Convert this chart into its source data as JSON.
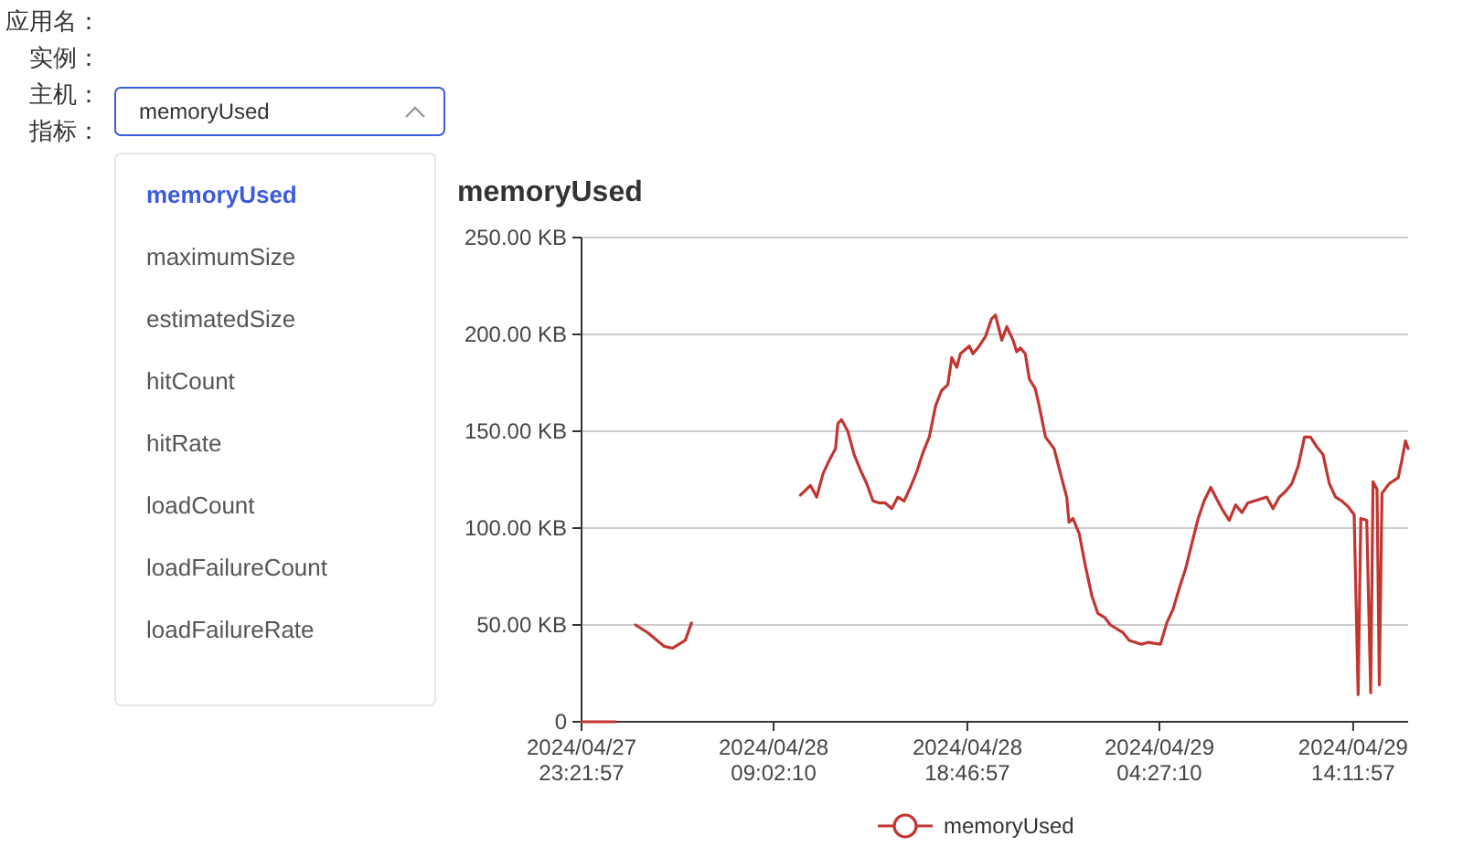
{
  "chart_data": {
    "type": "line",
    "title": "memoryUsed",
    "x": [
      "2024-04-27T23:22",
      "2024-04-28T01:04",
      "2024-04-28T01:52",
      "2024-04-28T02:05",
      "2024-04-28T02:42",
      "2024-04-28T03:31",
      "2024-04-28T03:57",
      "2024-04-28T04:35",
      "2024-04-28T04:54",
      "2024-04-28T05:52",
      "2024-04-28T10:23",
      "2024-04-28T10:53",
      "2024-04-28T11:12",
      "2024-04-28T11:31",
      "2024-04-28T11:50",
      "2024-04-28T12:09",
      "2024-04-28T12:16",
      "2024-04-28T12:27",
      "2024-04-28T12:46",
      "2024-04-28T13:05",
      "2024-04-28T13:24",
      "2024-04-28T13:43",
      "2024-04-28T14:02",
      "2024-04-28T14:21",
      "2024-04-28T14:39",
      "2024-04-28T14:59",
      "2024-04-28T15:17",
      "2024-04-28T15:36",
      "2024-04-28T15:55",
      "2024-04-28T16:14",
      "2024-04-28T16:33",
      "2024-04-28T16:52",
      "2024-04-28T17:11",
      "2024-04-28T17:29",
      "2024-04-28T17:48",
      "2024-04-28T18:00",
      "2024-04-28T18:15",
      "2024-04-28T18:26",
      "2024-04-28T18:53",
      "2024-04-28T19:04",
      "2024-04-28T19:23",
      "2024-04-28T19:42",
      "2024-04-28T20:00",
      "2024-04-28T20:12",
      "2024-04-28T20:31",
      "2024-04-28T20:46",
      "2024-04-28T21:05",
      "2024-04-28T21:16",
      "2024-04-28T21:27",
      "2024-04-28T21:42",
      "2024-04-28T21:54",
      "2024-04-28T22:12",
      "2024-04-28T22:24",
      "2024-04-28T22:43",
      "2024-04-28T23:09",
      "2024-04-28T23:24",
      "2024-04-28T23:47",
      "2024-04-28T23:54",
      "2024-04-29T00:06",
      "2024-04-29T00:25",
      "2024-04-29T00:44",
      "2024-04-29T01:03",
      "2024-04-29T01:21",
      "2024-04-29T01:41",
      "2024-04-29T01:59",
      "2024-04-29T02:37",
      "2024-04-29T02:56",
      "2024-04-29T03:33",
      "2024-04-29T03:53",
      "2024-04-29T04:30",
      "2024-04-29T04:49",
      "2024-04-29T05:08",
      "2024-04-29T05:27",
      "2024-04-29T05:46",
      "2024-04-29T06:05",
      "2024-04-29T06:24",
      "2024-04-29T06:42",
      "2024-04-29T07:02",
      "2024-04-29T07:20",
      "2024-04-29T07:39",
      "2024-04-29T07:58",
      "2024-04-29T08:17",
      "2024-04-29T08:36",
      "2024-04-29T08:54",
      "2024-04-29T09:14",
      "2024-04-29T09:51",
      "2024-04-29T10:10",
      "2024-04-29T10:29",
      "2024-04-29T10:48",
      "2024-04-29T11:07",
      "2024-04-29T11:26",
      "2024-04-29T11:45",
      "2024-04-29T12:03",
      "2024-04-29T12:22",
      "2024-04-29T12:41",
      "2024-04-29T13:00",
      "2024-04-29T13:19",
      "2024-04-29T13:38",
      "2024-04-29T13:57",
      "2024-04-29T14:15",
      "2024-04-29T14:27",
      "2024-04-29T14:35",
      "2024-04-29T14:53",
      "2024-04-29T15:05",
      "2024-04-29T15:12",
      "2024-04-29T15:24",
      "2024-04-29T15:31",
      "2024-04-29T15:39",
      "2024-04-29T16:01",
      "2024-04-29T16:28",
      "2024-04-29T16:39",
      "2024-04-29T16:50",
      "2024-04-29T16:58"
    ],
    "series": [
      {
        "name": "memoryUsed",
        "color": "#c23531",
        "values": [
          0,
          0,
          null,
          50,
          46,
          39,
          38,
          42,
          51,
          null,
          117,
          122,
          116,
          128,
          135,
          141,
          154,
          156,
          150,
          138,
          130,
          123,
          114,
          113,
          113,
          110,
          116,
          114,
          121,
          129,
          139,
          147,
          163,
          171,
          174,
          188,
          183,
          190,
          194,
          190,
          194,
          199,
          208,
          210,
          197,
          204,
          197,
          191,
          193,
          190,
          177,
          172,
          163,
          147,
          141,
          131,
          116,
          103,
          105,
          97,
          80,
          65,
          56,
          54,
          50,
          46,
          42,
          40,
          41,
          40,
          51,
          58,
          69,
          79,
          92,
          105,
          114,
          121,
          115,
          109,
          104,
          112,
          108,
          113,
          114,
          116,
          110,
          116,
          119,
          123,
          132,
          147,
          147,
          142,
          138,
          123,
          116,
          114,
          111,
          107,
          14,
          105,
          104,
          15,
          124,
          120,
          19,
          118,
          123,
          126,
          135,
          145,
          141
        ]
      }
    ],
    "xlim": [
      "2024-04-27T23:22",
      "2024-04-29T16:58"
    ],
    "xticks": [
      {
        "value": "2024-04-27T23:22",
        "label": "2024/04/27 23:21:57"
      },
      {
        "value": "2024-04-28T09:02",
        "label": "2024/04/28 09:02:10"
      },
      {
        "value": "2024-04-28T18:47",
        "label": "2024/04/28 18:46:57"
      },
      {
        "value": "2024-04-29T04:27",
        "label": "2024/04/29 04:27:10"
      },
      {
        "value": "2024-04-29T14:12",
        "label": "2024/04/29 14:11:57"
      }
    ],
    "ylim": [
      0,
      250
    ],
    "yticks": [
      0,
      {
        "value": 50,
        "label": "50.00 KB"
      },
      {
        "value": 100,
        "label": "100.00 KB"
      },
      {
        "value": 150,
        "label": "150.00 KB"
      },
      {
        "value": 200,
        "label": "200.00 KB"
      },
      {
        "value": 250,
        "label": "250.00 KB"
      }
    ],
    "grid": "y",
    "legend": "bottom",
    "annotations": [
      "应用名：",
      "实例：",
      "主机：",
      "指标：",
      "memoryUsed",
      "memoryUsed",
      "maximumSize",
      "estimatedSize",
      "hitCount",
      "hitRate",
      "loadCount",
      "loadFailureCount",
      "loadFailureRate"
    ]
  }
}
